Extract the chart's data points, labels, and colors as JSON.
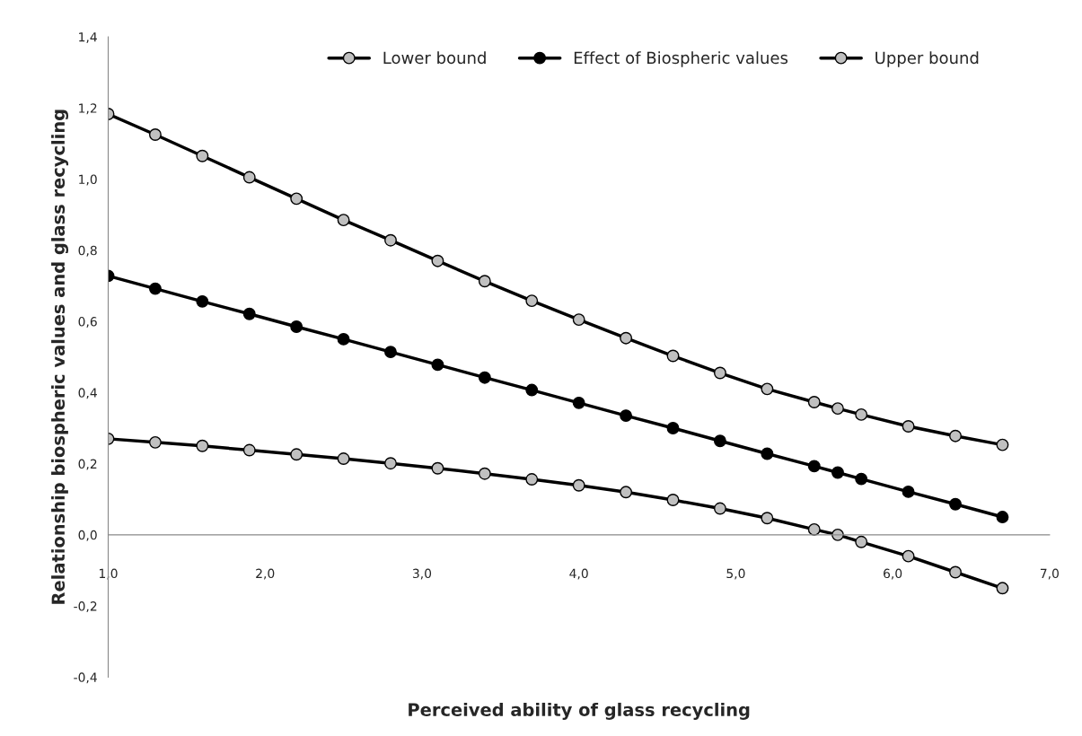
{
  "chart_data": {
    "type": "line",
    "xlabel": "Perceived ability of glass recycling",
    "ylabel": "Relationship biospheric values and glass recycling",
    "x": [
      1.0,
      1.3,
      1.6,
      1.9,
      2.2,
      2.5,
      2.8,
      3.1,
      3.4,
      3.7,
      4.0,
      4.3,
      4.6,
      4.9,
      5.2,
      5.5,
      5.65,
      5.8,
      6.1,
      6.4,
      6.7
    ],
    "series": [
      {
        "name": "Lower bound",
        "color": "#c0c0c0",
        "values": [
          0.27,
          0.26,
          0.25,
          0.238,
          0.226,
          0.214,
          0.201,
          0.187,
          0.172,
          0.156,
          0.139,
          0.12,
          0.098,
          0.074,
          0.047,
          0.015,
          0.0,
          -0.02,
          -0.06,
          -0.105,
          -0.15
        ]
      },
      {
        "name": "Effect of Biospheric values",
        "color": "#000000",
        "values": [
          0.728,
          0.692,
          0.656,
          0.621,
          0.585,
          0.55,
          0.514,
          0.478,
          0.442,
          0.407,
          0.371,
          0.335,
          0.3,
          0.264,
          0.228,
          0.193,
          0.175,
          0.157,
          0.121,
          0.086,
          0.05
        ]
      },
      {
        "name": "Upper bound",
        "color": "#c0c0c0",
        "values": [
          1.183,
          1.125,
          1.065,
          1.005,
          0.945,
          0.885,
          0.828,
          0.77,
          0.713,
          0.658,
          0.605,
          0.553,
          0.503,
          0.455,
          0.41,
          0.373,
          0.355,
          0.338,
          0.305,
          0.278,
          0.253
        ]
      }
    ],
    "xlim": [
      1.0,
      7.0
    ],
    "xticks": [
      {
        "value": 1.0,
        "label": "1,0"
      },
      {
        "value": 2.0,
        "label": "2,0"
      },
      {
        "value": 3.0,
        "label": "3,0"
      },
      {
        "value": 4.0,
        "label": "4,0"
      },
      {
        "value": 5.0,
        "label": "5,0"
      },
      {
        "value": 6.0,
        "label": "6,0"
      },
      {
        "value": 7.0,
        "label": "7,0"
      }
    ],
    "ylim": [
      -0.4,
      1.4
    ],
    "yticks": [
      {
        "value": -0.4,
        "label": "-0,4"
      },
      {
        "value": -0.2,
        "label": "-0,2"
      },
      {
        "value": 0.0,
        "label": "0,0"
      },
      {
        "value": 0.2,
        "label": "0,2"
      },
      {
        "value": 0.4,
        "label": "0,4"
      },
      {
        "value": 0.6,
        "label": "0,6"
      },
      {
        "value": 0.8,
        "label": "0,8"
      },
      {
        "value": 1.0,
        "label": "1,0"
      },
      {
        "value": 1.2,
        "label": "1,2"
      },
      {
        "value": 1.4,
        "label": "1,4"
      }
    ],
    "legend": "top",
    "marker": "circle",
    "line_style": "solid"
  }
}
